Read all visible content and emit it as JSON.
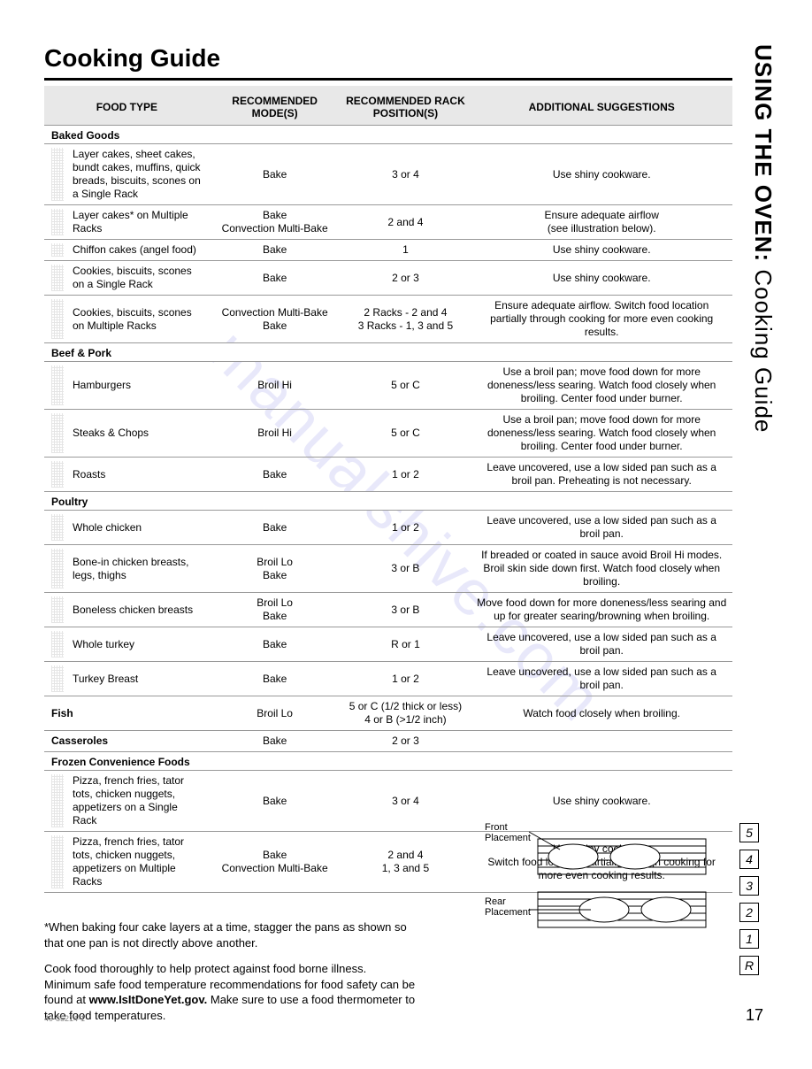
{
  "title": "Cooking Guide",
  "sidebar": {
    "bold": "USING THE OVEN:",
    "rest": " Cooking Guide"
  },
  "headers": [
    "FOOD TYPE",
    "RECOMMENDED MODE(S)",
    "RECOMMENDED RACK POSITION(S)",
    "ADDITIONAL SUGGESTIONS"
  ],
  "sections": [
    {
      "name": "Baked Goods",
      "rows": [
        {
          "food": "Layer cakes, sheet cakes, bundt cakes, muffins, quick breads, biscuits, scones on a Single Rack",
          "mode": "Bake",
          "rack": "3 or 4",
          "sugg": "Use shiny cookware."
        },
        {
          "food": "Layer cakes* on Multiple Racks",
          "mode": "Bake\nConvection Multi-Bake",
          "rack": "2 and 4",
          "sugg": "Ensure adequate airflow\n(see illustration below)."
        },
        {
          "food": "Chiffon cakes (angel food)",
          "mode": "Bake",
          "rack": "1",
          "sugg": "Use shiny cookware."
        },
        {
          "food": "Cookies, biscuits, scones on a Single Rack",
          "mode": "Bake",
          "rack": "2 or 3",
          "sugg": "Use shiny cookware."
        },
        {
          "food": "Cookies, biscuits, scones on Multiple Racks",
          "mode": "Convection Multi-Bake\nBake",
          "rack": "2 Racks - 2 and 4\n3 Racks - 1, 3 and 5",
          "sugg": "Ensure adequate airflow. Switch food location partially through cooking for more even cooking results."
        }
      ]
    },
    {
      "name": "Beef & Pork",
      "rows": [
        {
          "food": "Hamburgers",
          "mode": "Broil Hi",
          "rack": "5 or C",
          "sugg": "Use a broil pan; move food down for more doneness/less searing. Watch food closely when broiling. Center food under burner."
        },
        {
          "food": "Steaks & Chops",
          "mode": "Broil Hi",
          "rack": "5 or C",
          "sugg": "Use a broil pan; move food down for more doneness/less searing. Watch food closely when broiling. Center food under burner."
        },
        {
          "food": "Roasts",
          "mode": "Bake",
          "rack": "1 or 2",
          "sugg": "Leave uncovered, use a low sided pan such as a broil pan. Preheating is not necessary."
        }
      ]
    },
    {
      "name": "Poultry",
      "rows": [
        {
          "food": "Whole chicken",
          "mode": "Bake",
          "rack": "1 or 2",
          "sugg": "Leave uncovered, use a low sided pan such as a broil pan."
        },
        {
          "food": "Bone-in chicken breasts, legs, thighs",
          "mode": "Broil Lo\nBake",
          "rack": "3 or B",
          "sugg": "If breaded or coated in sauce avoid Broil Hi modes. Broil skin side down first. Watch food closely when broiling."
        },
        {
          "food": "Boneless chicken breasts",
          "mode": "Broil Lo\nBake",
          "rack": "3 or B",
          "sugg": "Move food down for more doneness/less searing and up for greater searing/browning when broiling."
        },
        {
          "food": "Whole turkey",
          "mode": "Bake",
          "rack": "R or 1",
          "sugg": "Leave uncovered, use a low sided pan such as a broil pan."
        },
        {
          "food": "Turkey Breast",
          "mode": "Bake",
          "rack": "1 or 2",
          "sugg": "Leave uncovered, use a low sided pan such as a broil pan."
        }
      ]
    }
  ],
  "single_rows": [
    {
      "label": "Fish",
      "mode": "Broil Lo",
      "rack": "5 or C (1/2 thick or less)\n4 or B (>1/2 inch)",
      "sugg": "Watch food closely when broiling."
    },
    {
      "label": "Casseroles",
      "mode": "Bake",
      "rack": "2 or 3",
      "sugg": ""
    }
  ],
  "frozen": {
    "name": "Frozen Convenience Foods",
    "rows": [
      {
        "food": "Pizza, french fries, tator tots, chicken nuggets, appetizers on a Single Rack",
        "mode": "Bake",
        "rack": "3 or 4",
        "sugg": "Use shiny cookware."
      },
      {
        "food": "Pizza, french fries, tator tots, chicken nuggets, appetizers on Multiple Racks",
        "mode": "Bake\nConvection Multi-Bake",
        "rack": "2 and 4\n1, 3 and 5",
        "sugg": "Use shiny cookware.\nSwitch food location partially through cooking for more even cooking results."
      }
    ]
  },
  "footer": {
    "note1": "*When baking four cake layers at a time, stagger the pans as shown so that one pan is not directly above another.",
    "note2_a": "Cook food thoroughly to help protect against food borne illness. Minimum safe food temperature recommendations for food safety can be found at ",
    "note2_bold": "www.IsItDoneYet.gov.",
    "note2_b": " Make sure to use a food thermometer to take food temperatures."
  },
  "diagram": {
    "front_label": "Front Placement",
    "rear_label": "Rear Placement",
    "positions": [
      "5",
      "4",
      "3",
      "2",
      "1",
      "R"
    ]
  },
  "page_number": "17",
  "doc_code": "49-85214-1",
  "watermark": "manualshive.com"
}
